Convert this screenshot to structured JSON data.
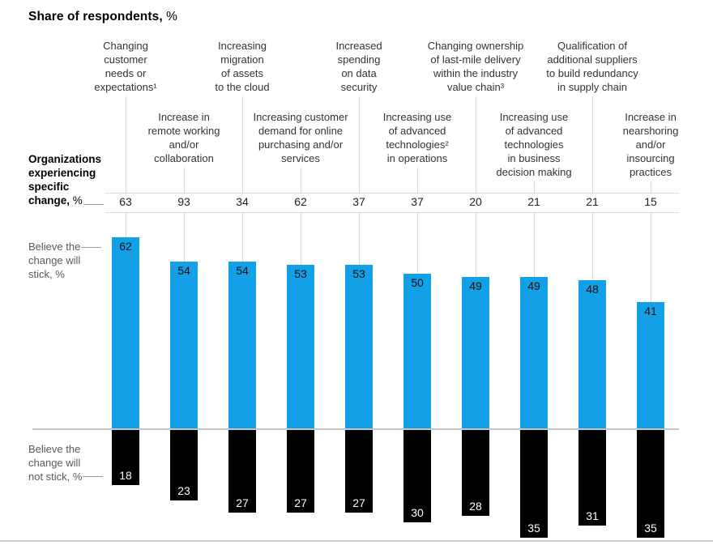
{
  "title": {
    "main": "Share of respondents,",
    "suffix": " %"
  },
  "colors": {
    "stick_bar": "#14a0e6",
    "not_stick_bar": "#000000",
    "grid_line": "#d9d9d9",
    "side_label_gray": "#595959"
  },
  "row_labels": {
    "experiencing": {
      "lines": [
        "Organizations",
        "experiencing",
        "specific",
        "change, %"
      ]
    },
    "stick": {
      "lines": [
        "Believe the",
        "change will",
        "stick, %"
      ]
    },
    "not_stick": {
      "lines": [
        "Believe the",
        "change will",
        "not stick, %"
      ]
    }
  },
  "chart_data": {
    "type": "bar",
    "orientation": "diverging-vertical",
    "title": "Share of respondents, %",
    "categories": [
      "Changing customer needs or expectations¹",
      "Increase in remote working and/or collaboration",
      "Increasing migration of assets to the cloud",
      "Increasing customer demand for online purchasing and/or services",
      "Increased spending on data security",
      "Increasing use of advanced technologies² in operations",
      "Changing ownership of last-mile delivery within the industry value chain³",
      "Increasing use of advanced technologies in business decision making",
      "Qualification of additional suppliers to build redundancy in supply chain",
      "Increase in nearshoring and/or insourcing practices"
    ],
    "category_label_lines": [
      [
        "Changing",
        "customer",
        "needs or",
        "expectations¹"
      ],
      [
        "Increase in",
        "remote working",
        "and/or",
        "collaboration"
      ],
      [
        "Increasing",
        "migration",
        "of assets",
        "to the cloud"
      ],
      [
        "Increasing customer",
        "demand for online",
        "purchasing and/or",
        "services"
      ],
      [
        "Increased",
        "spending",
        "on data",
        "security"
      ],
      [
        "Increasing use",
        "of advanced",
        "technologies²",
        "in operations"
      ],
      [
        "Changing ownership",
        "of last-mile delivery",
        "within the industry",
        "value chain³"
      ],
      [
        "Increasing use",
        "of advanced",
        "technologies",
        "in business",
        "decision making"
      ],
      [
        "Qualification of",
        "additional suppliers",
        "to build redundancy",
        "in supply chain"
      ],
      [
        "Increase in",
        "nearshoring",
        "and/or",
        "insourcing",
        "practices"
      ]
    ],
    "label_row": [
      "top",
      "bottom",
      "top",
      "bottom",
      "top",
      "bottom",
      "top",
      "bottom",
      "top",
      "bottom"
    ],
    "series": [
      {
        "name": "Organizations experiencing specific change, %",
        "values": [
          63,
          93,
          34,
          62,
          37,
          37,
          20,
          21,
          21,
          15
        ]
      },
      {
        "name": "Believe the change will stick, %",
        "values": [
          62,
          54,
          54,
          53,
          53,
          50,
          49,
          49,
          48,
          41
        ]
      },
      {
        "name": "Believe the change will not stick, %",
        "values": [
          18,
          23,
          27,
          27,
          27,
          30,
          28,
          35,
          31,
          35
        ]
      }
    ],
    "legend_position": "left",
    "grid": "partial",
    "value_labels": "inside-bars"
  }
}
